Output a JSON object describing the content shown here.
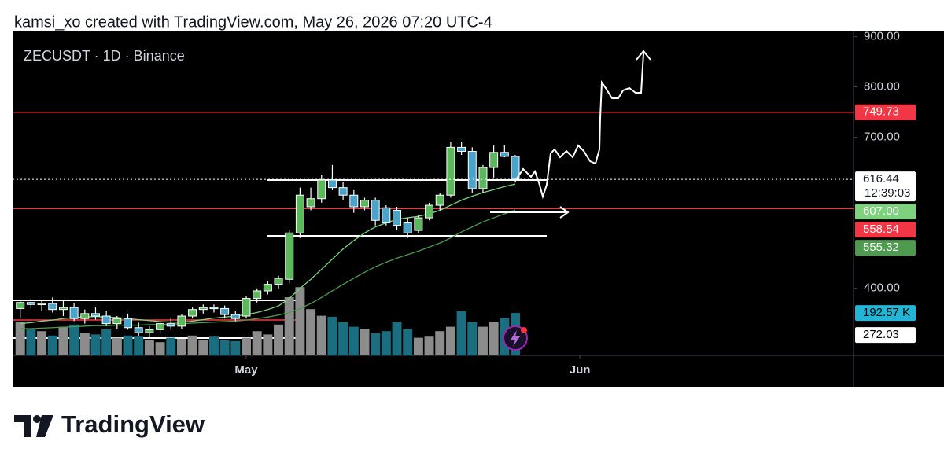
{
  "header": "kamsi_xo created with TradingView.com, May 26, 2026 07:20 UTC-4",
  "footer": {
    "brand": "TradingView"
  },
  "chart_data": {
    "type": "candlestick",
    "title": "ZECUSDT · 1D · Binance",
    "x": [
      "2026-04-10",
      "2026-04-11",
      "2026-04-12",
      "2026-04-13",
      "2026-04-14",
      "2026-04-15",
      "2026-04-16",
      "2026-04-17",
      "2026-04-18",
      "2026-04-19",
      "2026-04-20",
      "2026-04-21",
      "2026-04-22",
      "2026-04-23",
      "2026-04-24",
      "2026-04-25",
      "2026-04-26",
      "2026-04-27",
      "2026-04-28",
      "2026-04-29",
      "2026-04-30",
      "2026-05-01",
      "2026-05-02",
      "2026-05-03",
      "2026-05-04",
      "2026-05-05",
      "2026-05-06",
      "2026-05-07",
      "2026-05-08",
      "2026-05-09",
      "2026-05-10",
      "2026-05-11",
      "2026-05-12",
      "2026-05-13",
      "2026-05-14",
      "2026-05-15",
      "2026-05-16",
      "2026-05-17",
      "2026-05-18",
      "2026-05-19",
      "2026-05-20",
      "2026-05-21",
      "2026-05-22",
      "2026-05-23",
      "2026-05-24",
      "2026-05-25",
      "2026-05-26"
    ],
    "open": [
      360,
      372,
      368,
      370,
      358,
      362,
      340,
      350,
      345,
      330,
      340,
      322,
      312,
      318,
      330,
      325,
      345,
      358,
      362,
      360,
      348,
      345,
      380,
      395,
      408,
      418,
      510,
      562,
      578,
      615,
      600,
      585,
      562,
      575,
      560,
      555,
      530,
      515,
      540,
      565,
      585,
      680,
      672,
      598,
      640,
      670,
      662
    ],
    "high": [
      378,
      380,
      376,
      382,
      375,
      370,
      358,
      362,
      355,
      345,
      350,
      332,
      325,
      335,
      342,
      348,
      362,
      368,
      368,
      366,
      356,
      385,
      400,
      415,
      425,
      515,
      600,
      600,
      625,
      645,
      612,
      595,
      580,
      580,
      565,
      562,
      540,
      545,
      570,
      590,
      690,
      690,
      680,
      645,
      685,
      685,
      665
    ],
    "low": [
      340,
      360,
      355,
      352,
      345,
      335,
      330,
      338,
      325,
      320,
      318,
      305,
      302,
      310,
      318,
      320,
      340,
      350,
      352,
      340,
      335,
      340,
      372,
      388,
      400,
      410,
      500,
      555,
      570,
      595,
      575,
      550,
      555,
      525,
      525,
      515,
      500,
      510,
      535,
      555,
      580,
      665,
      590,
      590,
      620,
      660,
      610
    ],
    "close": [
      372,
      368,
      370,
      358,
      362,
      340,
      350,
      345,
      330,
      340,
      322,
      312,
      318,
      330,
      325,
      345,
      358,
      362,
      360,
      348,
      340,
      380,
      395,
      408,
      420,
      510,
      585,
      578,
      615,
      600,
      585,
      562,
      575,
      535,
      530,
      525,
      510,
      540,
      565,
      585,
      680,
      672,
      598,
      640,
      670,
      662,
      616.44
    ],
    "up_color": "#5cb85c",
    "down_color": "#4aa3c8",
    "volume": [
      150,
      120,
      110,
      90,
      130,
      140,
      100,
      95,
      120,
      80,
      90,
      85,
      70,
      60,
      80,
      75,
      90,
      70,
      85,
      70,
      65,
      80,
      110,
      95,
      140,
      264,
      310,
      210,
      180,
      175,
      150,
      130,
      120,
      100,
      110,
      150,
      120,
      80,
      85,
      110,
      130,
      200,
      150,
      130,
      150,
      170,
      192.57
    ],
    "volume_up_color": "#8c8c8c",
    "volume_down_color": "#1b6e80",
    "volume_label": {
      "value": 192.57,
      "label": "192.57 K",
      "color": "#22b5d6"
    },
    "volume_ma_label": {
      "value": 272.03,
      "label": "272.03"
    },
    "moving_averages": [
      {
        "color": "#7ed27e",
        "label": "607.00",
        "values": [
          330,
          332,
          335,
          337,
          340,
          342,
          343,
          344,
          343,
          342,
          340,
          338,
          336,
          334,
          333,
          333,
          335,
          338,
          341,
          343,
          345,
          348,
          352,
          358,
          365,
          380,
          400,
          418,
          438,
          458,
          478,
          495,
          510,
          522,
          530,
          537,
          540,
          543,
          548,
          555,
          565,
          575,
          583,
          590,
          596,
          602,
          607
        ]
      },
      {
        "color": "#4e9a4e",
        "label": "555.32",
        "values": [
          320,
          320,
          321,
          322,
          323,
          324,
          325,
          326,
          326,
          327,
          327,
          327,
          328,
          328,
          329,
          330,
          331,
          332,
          333,
          334,
          335,
          337,
          340,
          343,
          347,
          352,
          360,
          370,
          382,
          395,
          408,
          420,
          432,
          443,
          452,
          460,
          467,
          474,
          482,
          490,
          500,
          512,
          522,
          532,
          540,
          548,
          555.32
        ]
      }
    ],
    "hlines": [
      {
        "value": 749.73,
        "label": "749.73",
        "color": "#f23645"
      },
      {
        "value": 558.54,
        "label": "558.54",
        "color": "#f23645"
      }
    ],
    "last_label": {
      "label": "616.44",
      "countdown": "12:39:03"
    },
    "ylim": [
      267,
      910
    ],
    "yticks": [
      {
        "value": 900,
        "label": "900.00"
      },
      {
        "value": 800,
        "label": "800.00"
      },
      {
        "value": 700,
        "label": "700.00"
      },
      {
        "value": 400,
        "label": "400.00"
      }
    ],
    "xticks": [
      {
        "value": "2026-05-01",
        "label": "May"
      },
      {
        "value": "2026-06-01",
        "label": "Jun"
      }
    ]
  }
}
